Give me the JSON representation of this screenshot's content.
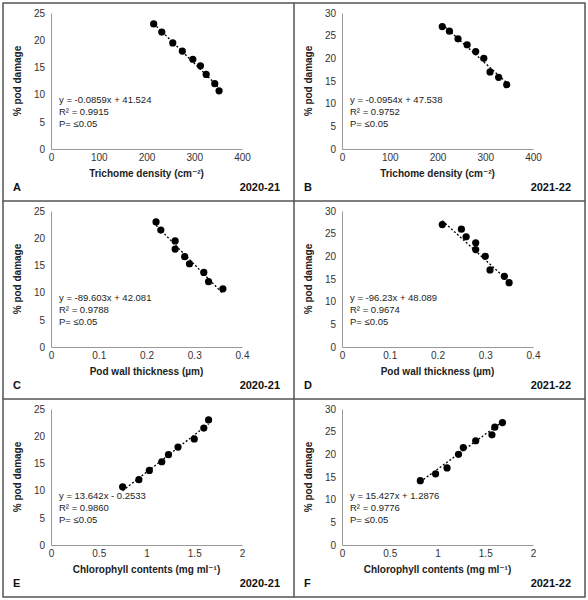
{
  "chart_data": [
    {
      "type": "scatter",
      "title": "A",
      "subtitle": "2020-21",
      "x_label": "Trichome density (cm⁻²)",
      "y_label": "% pod damage",
      "annotations": [
        "y = -0.0859x + 41.524",
        "R² = 0.9915",
        "P= ≤0.05"
      ],
      "xlim": [
        0,
        400
      ],
      "xticks": [
        0,
        100,
        200,
        300,
        400
      ],
      "ylim": [
        0,
        25
      ],
      "yticks": [
        0,
        5,
        10,
        15,
        20,
        25
      ],
      "grid": false,
      "series": [
        {
          "type": "scatter",
          "marker": "circle",
          "color": "#000000",
          "x": [
            215,
            232,
            255,
            275,
            297,
            313,
            325,
            343,
            352
          ],
          "values": [
            23,
            21.5,
            19.5,
            18,
            16.5,
            15.3,
            13.7,
            12,
            10.7
          ]
        },
        {
          "type": "line",
          "line_style": "dotted",
          "color": "#000000",
          "x": [
            215,
            352
          ],
          "values": [
            23.06,
            11.29
          ]
        }
      ]
    },
    {
      "type": "scatter",
      "title": "B",
      "subtitle": "2021-22",
      "x_label": "Trichome density (cm⁻²)",
      "y_label": "% pod damage",
      "annotations": [
        "y = -0.0954x + 47.538",
        "R² = 0.9752",
        "P= ≤0.05"
      ],
      "xlim": [
        0,
        400
      ],
      "xticks": [
        0,
        100,
        200,
        300,
        400
      ],
      "ylim": [
        0,
        30
      ],
      "yticks": [
        0,
        5,
        10,
        15,
        20,
        25,
        30
      ],
      "grid": false,
      "series": [
        {
          "type": "scatter",
          "marker": "circle",
          "color": "#000000",
          "x": [
            210,
            225,
            243,
            262,
            280,
            297,
            310,
            328,
            345
          ],
          "values": [
            27,
            26,
            24.3,
            23,
            21.5,
            20,
            17,
            15.8,
            14.2
          ]
        },
        {
          "type": "line",
          "line_style": "dotted",
          "color": "#000000",
          "x": [
            210,
            345
          ],
          "values": [
            27.5,
            14.63
          ]
        }
      ]
    },
    {
      "type": "scatter",
      "title": "C",
      "subtitle": "2020-21",
      "x_label": "Pod wall thickness (µm)",
      "y_label": "% pod damage",
      "annotations": [
        "y = -89.603x + 42.081",
        "R² = 0.9788",
        "P= ≤0.05"
      ],
      "xlim": [
        0,
        0.4
      ],
      "xticks": [
        0,
        0.1,
        0.2,
        0.3,
        0.4
      ],
      "ylim": [
        0,
        25
      ],
      "yticks": [
        0,
        5,
        10,
        15,
        20,
        25
      ],
      "grid": false,
      "series": [
        {
          "type": "scatter",
          "marker": "circle",
          "color": "#000000",
          "x": [
            0.22,
            0.23,
            0.26,
            0.26,
            0.28,
            0.29,
            0.32,
            0.33,
            0.36
          ],
          "values": [
            23,
            21.5,
            19.5,
            18,
            16.6,
            15.3,
            13.7,
            12,
            10.7
          ]
        },
        {
          "type": "line",
          "line_style": "dotted",
          "color": "#000000",
          "x": [
            0.22,
            0.36
          ],
          "values": [
            22.37,
            9.82
          ]
        }
      ]
    },
    {
      "type": "scatter",
      "title": "D",
      "subtitle": "2021-22",
      "x_label": "Pod wall thickness (µm)",
      "y_label": "% pod damage",
      "annotations": [
        "y = -96.23x + 48.089",
        "R² = 0.9674",
        "P= ≤0.05"
      ],
      "xlim": [
        0,
        0.4
      ],
      "xticks": [
        0,
        0.1,
        0.2,
        0.3,
        0.4
      ],
      "ylim": [
        0,
        30
      ],
      "yticks": [
        0,
        5,
        10,
        15,
        20,
        25,
        30
      ],
      "grid": false,
      "series": [
        {
          "type": "scatter",
          "marker": "circle",
          "color": "#000000",
          "x": [
            0.21,
            0.25,
            0.26,
            0.28,
            0.28,
            0.3,
            0.31,
            0.34,
            0.35
          ],
          "values": [
            27,
            26,
            24.3,
            23,
            21.5,
            20,
            17,
            15.6,
            14.2
          ]
        },
        {
          "type": "line",
          "line_style": "dotted",
          "color": "#000000",
          "x": [
            0.21,
            0.35
          ],
          "values": [
            27.88,
            14.41
          ]
        }
      ]
    },
    {
      "type": "scatter",
      "title": "E",
      "subtitle": "2020-21",
      "x_label": "Chlorophyll contents (mg ml⁻¹)",
      "y_label": "% pod damage",
      "annotations": [
        "y = 13.642x - 0.2533",
        "R² = 0.9860",
        "P= ≤0.05"
      ],
      "xlim": [
        0,
        2
      ],
      "xticks": [
        0,
        0.5,
        1,
        1.5,
        2
      ],
      "ylim": [
        0,
        25
      ],
      "yticks": [
        0,
        5,
        10,
        15,
        20,
        25
      ],
      "grid": false,
      "series": [
        {
          "type": "scatter",
          "marker": "circle",
          "color": "#000000",
          "x": [
            0.75,
            0.92,
            1.03,
            1.16,
            1.23,
            1.33,
            1.5,
            1.6,
            1.65
          ],
          "values": [
            10.7,
            12,
            13.7,
            15.3,
            16.6,
            18,
            19.5,
            21.5,
            23
          ]
        },
        {
          "type": "line",
          "line_style": "dotted",
          "color": "#000000",
          "x": [
            0.75,
            1.65
          ],
          "values": [
            9.98,
            22.26
          ]
        }
      ]
    },
    {
      "type": "scatter",
      "title": "F",
      "subtitle": "2021-22",
      "x_label": "Chlorophyll contents (mg ml⁻¹)",
      "y_label": "% pod damage",
      "annotations": [
        "y = 15.427x + 1.2876",
        "R² = 0.9776",
        "P= ≤0.05"
      ],
      "xlim": [
        0,
        2
      ],
      "xticks": [
        0,
        0.5,
        1,
        1.5,
        2
      ],
      "ylim": [
        0,
        30
      ],
      "yticks": [
        0,
        5,
        10,
        15,
        20,
        25,
        30
      ],
      "grid": false,
      "series": [
        {
          "type": "scatter",
          "marker": "circle",
          "color": "#000000",
          "x": [
            0.82,
            0.98,
            1.1,
            1.22,
            1.27,
            1.4,
            1.57,
            1.6,
            1.68
          ],
          "values": [
            14.2,
            15.7,
            17,
            20,
            21.5,
            23,
            24.3,
            26,
            27
          ]
        },
        {
          "type": "line",
          "line_style": "dotted",
          "color": "#000000",
          "x": [
            0.82,
            1.68
          ],
          "values": [
            13.94,
            27.2
          ]
        }
      ]
    }
  ]
}
